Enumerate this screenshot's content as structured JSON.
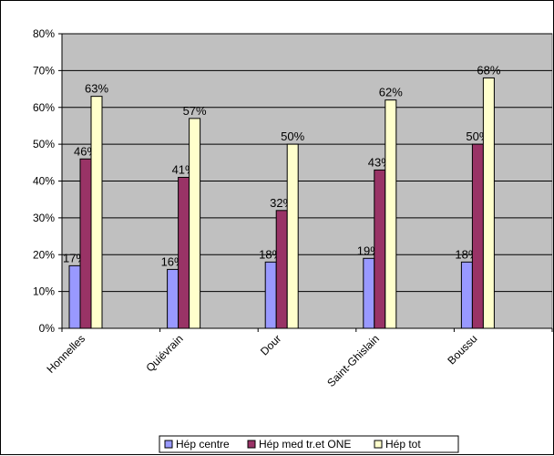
{
  "chart_data": {
    "type": "bar",
    "categories": [
      "Honnelles",
      "Quiévrain",
      "Dour",
      "Saint-Ghislain",
      "Boussu"
    ],
    "series": [
      {
        "name": "Hép centre",
        "values": [
          17,
          16,
          18,
          19,
          18
        ],
        "labels": [
          "17%",
          "16%",
          "18%",
          "19%",
          "18%"
        ],
        "color": "#9999FF"
      },
      {
        "name": "Hép med tr.et ONE",
        "values": [
          46,
          41,
          32,
          43,
          50
        ],
        "labels": [
          "46%",
          "41%",
          "32%",
          "43%",
          "50%"
        ],
        "color": "#993366"
      },
      {
        "name": "Hép tot",
        "values": [
          63,
          57,
          50,
          62,
          68
        ],
        "labels": [
          "63%",
          "57%",
          "50%",
          "62%",
          "68%"
        ],
        "color": "#FFFFCC"
      }
    ],
    "ylim": [
      0,
      80
    ],
    "yticks": [
      "0%",
      "10%",
      "20%",
      "30%",
      "40%",
      "50%",
      "60%",
      "70%",
      "80%"
    ],
    "grid": true,
    "plot_background": "#C0C0C0",
    "legend_position": "bottom"
  }
}
